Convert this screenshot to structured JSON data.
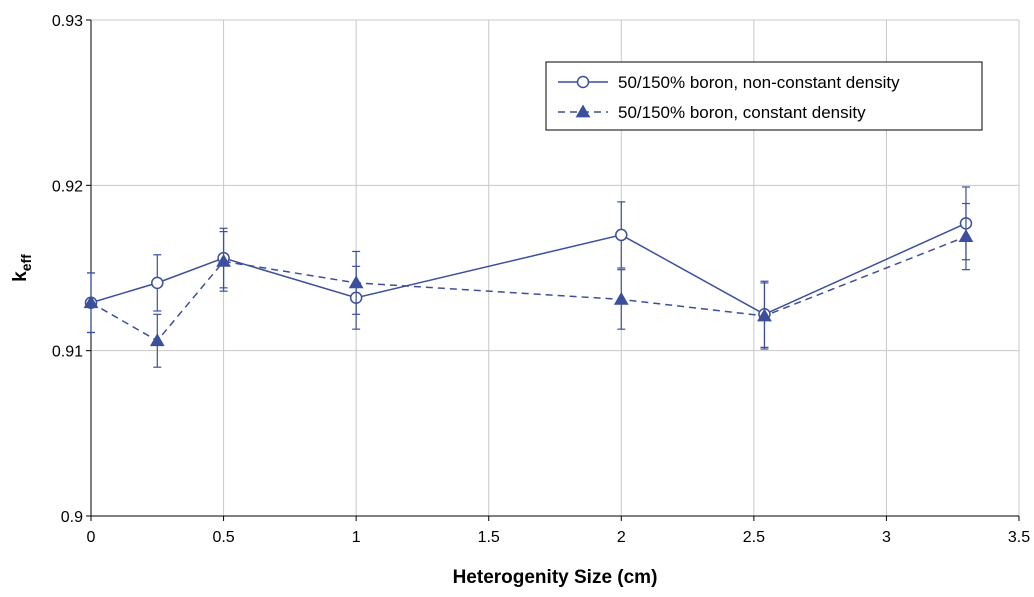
{
  "chart_data": {
    "type": "line",
    "xlabel": "Heterogenity Size (cm)",
    "ylabel": {
      "main": "k",
      "sub": "eff"
    },
    "xlim": [
      0,
      3.5
    ],
    "ylim": [
      0.9,
      0.93
    ],
    "x_ticks": [
      0,
      0.5,
      1,
      1.5,
      2,
      2.5,
      3,
      3.5
    ],
    "x_tick_labels": [
      "0",
      "0.5",
      "1",
      "1.5",
      "2",
      "2.5",
      "3",
      "3.5"
    ],
    "y_ticks": [
      0.9,
      0.91,
      0.92,
      0.93
    ],
    "y_tick_labels": [
      "0.9",
      "0.91",
      "0.92",
      "0.93"
    ],
    "grid": true,
    "legend_position": "top-right",
    "line_color": "#3c4f9c",
    "series": [
      {
        "name": "50/150% boron, non-constant density",
        "line_style": "solid",
        "marker": "open-circle",
        "x": [
          0,
          0.25,
          0.5,
          1,
          2,
          2.54,
          3.3
        ],
        "y": [
          0.9129,
          0.9141,
          0.9156,
          0.9132,
          0.917,
          0.9122,
          0.9177
        ],
        "error": [
          0.0018,
          0.0017,
          0.0018,
          0.0019,
          0.002,
          0.002,
          0.0022
        ]
      },
      {
        "name": "50/150% boron, constant density",
        "line_style": "dashed",
        "marker": "filled-triangle",
        "x": [
          0,
          0.25,
          0.5,
          1,
          2,
          2.54,
          3.3
        ],
        "y": [
          0.9129,
          0.9106,
          0.9154,
          0.9141,
          0.9131,
          0.9121,
          0.9169
        ],
        "error": [
          0.0018,
          0.0016,
          0.0018,
          0.0019,
          0.0018,
          0.002,
          0.002
        ]
      }
    ]
  }
}
